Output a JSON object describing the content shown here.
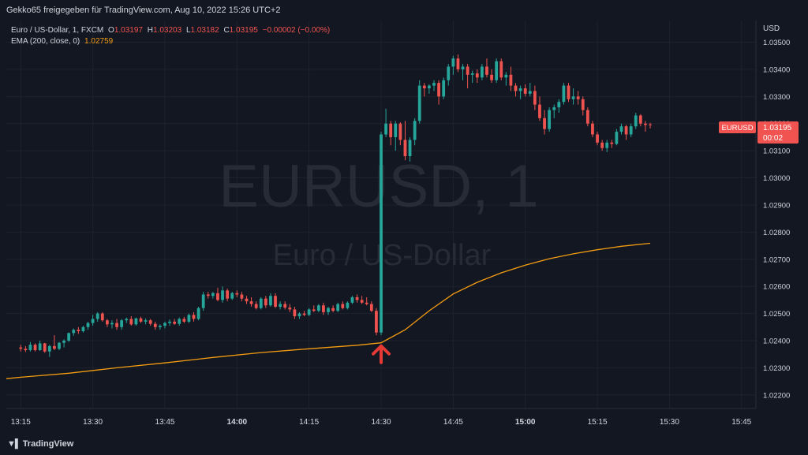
{
  "header": {
    "title": "Gekko65 freigegeben für TradingView.com, Aug 10, 2022 15:26 UTC+2"
  },
  "legend": {
    "symbol": "Euro / US-Dollar, 1, FXCM",
    "open_label": "O",
    "open": "1.03197",
    "high_label": "H",
    "high": "1.03203",
    "low_label": "L",
    "low": "1.03182",
    "close_label": "C",
    "close": "1.03195",
    "change": "−0.00002 (−0.00%)",
    "ema_label": "EMA (200, close, 0)",
    "ema_value": "1.02759"
  },
  "watermark": {
    "line1": "EURUSD, 1",
    "line2": "Euro / US-Dollar"
  },
  "price_tag": {
    "symbol": "EURUSD",
    "price": "1.03195",
    "countdown": "00:02"
  },
  "footer": {
    "logo": "TradingView"
  },
  "colors": {
    "up": "#26a69a",
    "down": "#ef5350",
    "ema": "#f39c12",
    "background": "#131722",
    "annotation": "#e53935"
  },
  "chart_data": {
    "type": "candlestick",
    "currency": "USD",
    "x_tick_labels": [
      "13:15",
      "13:30",
      "13:45",
      "14:00",
      "14:15",
      "14:30",
      "14:45",
      "15:00",
      "15:15",
      "15:30",
      "15:45"
    ],
    "bold_x_ticks": [
      "14:00",
      "15:00"
    ],
    "y_tick_labels": [
      "1.03500",
      "1.03400",
      "1.03300",
      "1.03200",
      "1.03100",
      "1.03000",
      "1.02900",
      "1.02800",
      "1.02700",
      "1.02600",
      "1.02500",
      "1.02400",
      "1.02300",
      "1.02200"
    ],
    "ylim": [
      1.0215,
      1.0358
    ],
    "xlim_minutes_from_13_15": [
      -3,
      153
    ],
    "grid": true,
    "annotation": {
      "type": "arrow-up",
      "minute": 75,
      "price": 1.02392
    },
    "candles": [
      {
        "m": 0,
        "o": 1.02375,
        "h": 1.02385,
        "l": 1.0236,
        "c": 1.0237
      },
      {
        "m": 1,
        "o": 1.0237,
        "h": 1.0238,
        "l": 1.02358,
        "c": 1.02365
      },
      {
        "m": 2,
        "o": 1.02365,
        "h": 1.02395,
        "l": 1.0236,
        "c": 1.02385
      },
      {
        "m": 3,
        "o": 1.02385,
        "h": 1.0239,
        "l": 1.0236,
        "c": 1.02365
      },
      {
        "m": 4,
        "o": 1.02365,
        "h": 1.024,
        "l": 1.02362,
        "c": 1.0239
      },
      {
        "m": 5,
        "o": 1.0239,
        "h": 1.02392,
        "l": 1.02355,
        "c": 1.0236
      },
      {
        "m": 6,
        "o": 1.0236,
        "h": 1.02385,
        "l": 1.0234,
        "c": 1.0238
      },
      {
        "m": 7,
        "o": 1.0238,
        "h": 1.0242,
        "l": 1.02365,
        "c": 1.0237
      },
      {
        "m": 8,
        "o": 1.0237,
        "h": 1.02395,
        "l": 1.02365,
        "c": 1.02392
      },
      {
        "m": 9,
        "o": 1.02392,
        "h": 1.02405,
        "l": 1.02375,
        "c": 1.024
      },
      {
        "m": 10,
        "o": 1.024,
        "h": 1.0243,
        "l": 1.02395,
        "c": 1.02428
      },
      {
        "m": 11,
        "o": 1.02428,
        "h": 1.02445,
        "l": 1.02418,
        "c": 1.0244
      },
      {
        "m": 12,
        "o": 1.0244,
        "h": 1.0245,
        "l": 1.02425,
        "c": 1.02435
      },
      {
        "m": 13,
        "o": 1.02435,
        "h": 1.02455,
        "l": 1.0243,
        "c": 1.0245
      },
      {
        "m": 14,
        "o": 1.0245,
        "h": 1.0247,
        "l": 1.0244,
        "c": 1.02465
      },
      {
        "m": 15,
        "o": 1.02465,
        "h": 1.02495,
        "l": 1.02455,
        "c": 1.0248
      },
      {
        "m": 16,
        "o": 1.0248,
        "h": 1.02505,
        "l": 1.0247,
        "c": 1.025
      },
      {
        "m": 17,
        "o": 1.025,
        "h": 1.02505,
        "l": 1.0247,
        "c": 1.02475
      },
      {
        "m": 18,
        "o": 1.02475,
        "h": 1.0248,
        "l": 1.0245,
        "c": 1.0246
      },
      {
        "m": 19,
        "o": 1.0246,
        "h": 1.02475,
        "l": 1.02445,
        "c": 1.02465
      },
      {
        "m": 20,
        "o": 1.02465,
        "h": 1.0248,
        "l": 1.0244,
        "c": 1.0245
      },
      {
        "m": 21,
        "o": 1.0245,
        "h": 1.0248,
        "l": 1.0244,
        "c": 1.02475
      },
      {
        "m": 22,
        "o": 1.02475,
        "h": 1.02485,
        "l": 1.02465,
        "c": 1.0248
      },
      {
        "m": 23,
        "o": 1.0248,
        "h": 1.0249,
        "l": 1.02455,
        "c": 1.0246
      },
      {
        "m": 24,
        "o": 1.0246,
        "h": 1.02485,
        "l": 1.02455,
        "c": 1.02482
      },
      {
        "m": 25,
        "o": 1.02482,
        "h": 1.02488,
        "l": 1.02465,
        "c": 1.0247
      },
      {
        "m": 26,
        "o": 1.0247,
        "h": 1.02482,
        "l": 1.0246,
        "c": 1.02475
      },
      {
        "m": 27,
        "o": 1.02475,
        "h": 1.0248,
        "l": 1.02455,
        "c": 1.02462
      },
      {
        "m": 28,
        "o": 1.02462,
        "h": 1.0247,
        "l": 1.0244,
        "c": 1.0245
      },
      {
        "m": 29,
        "o": 1.0245,
        "h": 1.0246,
        "l": 1.0244,
        "c": 1.02455
      },
      {
        "m": 30,
        "o": 1.02455,
        "h": 1.0247,
        "l": 1.02445,
        "c": 1.02465
      },
      {
        "m": 31,
        "o": 1.02465,
        "h": 1.02478,
        "l": 1.02455,
        "c": 1.0247
      },
      {
        "m": 32,
        "o": 1.0247,
        "h": 1.0248,
        "l": 1.02458,
        "c": 1.02462
      },
      {
        "m": 33,
        "o": 1.02462,
        "h": 1.02485,
        "l": 1.02455,
        "c": 1.0248
      },
      {
        "m": 34,
        "o": 1.0248,
        "h": 1.02488,
        "l": 1.02465,
        "c": 1.0247
      },
      {
        "m": 35,
        "o": 1.0247,
        "h": 1.025,
        "l": 1.02465,
        "c": 1.02495
      },
      {
        "m": 36,
        "o": 1.02495,
        "h": 1.02505,
        "l": 1.0247,
        "c": 1.0248
      },
      {
        "m": 37,
        "o": 1.0248,
        "h": 1.02525,
        "l": 1.02475,
        "c": 1.0252
      },
      {
        "m": 38,
        "o": 1.0252,
        "h": 1.0258,
        "l": 1.0251,
        "c": 1.0257
      },
      {
        "m": 39,
        "o": 1.0257,
        "h": 1.0258,
        "l": 1.02555,
        "c": 1.02565
      },
      {
        "m": 40,
        "o": 1.02565,
        "h": 1.0258,
        "l": 1.02555,
        "c": 1.02575
      },
      {
        "m": 41,
        "o": 1.02575,
        "h": 1.02595,
        "l": 1.02545,
        "c": 1.0255
      },
      {
        "m": 42,
        "o": 1.0255,
        "h": 1.026,
        "l": 1.0254,
        "c": 1.02585
      },
      {
        "m": 43,
        "o": 1.02585,
        "h": 1.02592,
        "l": 1.02545,
        "c": 1.02555
      },
      {
        "m": 44,
        "o": 1.02555,
        "h": 1.0258,
        "l": 1.0255,
        "c": 1.02575
      },
      {
        "m": 45,
        "o": 1.02575,
        "h": 1.02585,
        "l": 1.0256,
        "c": 1.0257
      },
      {
        "m": 46,
        "o": 1.0257,
        "h": 1.0258,
        "l": 1.02545,
        "c": 1.02555
      },
      {
        "m": 47,
        "o": 1.02555,
        "h": 1.02565,
        "l": 1.02535,
        "c": 1.02545
      },
      {
        "m": 48,
        "o": 1.02545,
        "h": 1.0256,
        "l": 1.02525,
        "c": 1.02535
      },
      {
        "m": 49,
        "o": 1.02535,
        "h": 1.02545,
        "l": 1.02515,
        "c": 1.0252
      },
      {
        "m": 50,
        "o": 1.0252,
        "h": 1.0256,
        "l": 1.02515,
        "c": 1.02555
      },
      {
        "m": 51,
        "o": 1.02555,
        "h": 1.02565,
        "l": 1.0252,
        "c": 1.0253
      },
      {
        "m": 52,
        "o": 1.0253,
        "h": 1.02575,
        "l": 1.02525,
        "c": 1.02565
      },
      {
        "m": 53,
        "o": 1.02565,
        "h": 1.02575,
        "l": 1.0252,
        "c": 1.02525
      },
      {
        "m": 54,
        "o": 1.02525,
        "h": 1.02545,
        "l": 1.02515,
        "c": 1.02535
      },
      {
        "m": 55,
        "o": 1.02535,
        "h": 1.02545,
        "l": 1.02515,
        "c": 1.02522
      },
      {
        "m": 56,
        "o": 1.02522,
        "h": 1.02535,
        "l": 1.02505,
        "c": 1.02515
      },
      {
        "m": 57,
        "o": 1.02515,
        "h": 1.02525,
        "l": 1.0248,
        "c": 1.0249
      },
      {
        "m": 58,
        "o": 1.0249,
        "h": 1.02505,
        "l": 1.0248,
        "c": 1.025
      },
      {
        "m": 59,
        "o": 1.025,
        "h": 1.0251,
        "l": 1.0249,
        "c": 1.02495
      },
      {
        "m": 60,
        "o": 1.02495,
        "h": 1.0252,
        "l": 1.0249,
        "c": 1.02515
      },
      {
        "m": 61,
        "o": 1.02515,
        "h": 1.0253,
        "l": 1.02505,
        "c": 1.0251
      },
      {
        "m": 62,
        "o": 1.0251,
        "h": 1.02535,
        "l": 1.02505,
        "c": 1.0253
      },
      {
        "m": 63,
        "o": 1.0253,
        "h": 1.0254,
        "l": 1.02495,
        "c": 1.02505
      },
      {
        "m": 64,
        "o": 1.02505,
        "h": 1.02525,
        "l": 1.02495,
        "c": 1.0252
      },
      {
        "m": 65,
        "o": 1.0252,
        "h": 1.0253,
        "l": 1.02505,
        "c": 1.0251
      },
      {
        "m": 66,
        "o": 1.0251,
        "h": 1.0254,
        "l": 1.02505,
        "c": 1.02535
      },
      {
        "m": 67,
        "o": 1.02535,
        "h": 1.02545,
        "l": 1.02515,
        "c": 1.0252
      },
      {
        "m": 68,
        "o": 1.0252,
        "h": 1.02545,
        "l": 1.02515,
        "c": 1.0254
      },
      {
        "m": 69,
        "o": 1.0254,
        "h": 1.02565,
        "l": 1.02535,
        "c": 1.0256
      },
      {
        "m": 70,
        "o": 1.0256,
        "h": 1.0257,
        "l": 1.0254,
        "c": 1.0255
      },
      {
        "m": 71,
        "o": 1.0255,
        "h": 1.02565,
        "l": 1.02535,
        "c": 1.0254
      },
      {
        "m": 72,
        "o": 1.0254,
        "h": 1.0256,
        "l": 1.0253,
        "c": 1.02535
      },
      {
        "m": 73,
        "o": 1.02535,
        "h": 1.02545,
        "l": 1.02505,
        "c": 1.0251
      },
      {
        "m": 74,
        "o": 1.0251,
        "h": 1.0252,
        "l": 1.0242,
        "c": 1.0243
      },
      {
        "m": 75,
        "o": 1.0243,
        "h": 1.0317,
        "l": 1.0242,
        "c": 1.0316
      },
      {
        "m": 76,
        "o": 1.0316,
        "h": 1.03255,
        "l": 1.0315,
        "c": 1.032
      },
      {
        "m": 77,
        "o": 1.032,
        "h": 1.0321,
        "l": 1.0312,
        "c": 1.0315
      },
      {
        "m": 78,
        "o": 1.0315,
        "h": 1.0321,
        "l": 1.031,
        "c": 1.032
      },
      {
        "m": 79,
        "o": 1.032,
        "h": 1.03205,
        "l": 1.0312,
        "c": 1.0314
      },
      {
        "m": 80,
        "o": 1.0314,
        "h": 1.0321,
        "l": 1.03065,
        "c": 1.0308
      },
      {
        "m": 81,
        "o": 1.0308,
        "h": 1.0315,
        "l": 1.0306,
        "c": 1.0314
      },
      {
        "m": 82,
        "o": 1.0314,
        "h": 1.0322,
        "l": 1.0312,
        "c": 1.0321
      },
      {
        "m": 83,
        "o": 1.0321,
        "h": 1.0336,
        "l": 1.032,
        "c": 1.0334
      },
      {
        "m": 84,
        "o": 1.0334,
        "h": 1.0335,
        "l": 1.033,
        "c": 1.0333
      },
      {
        "m": 85,
        "o": 1.0333,
        "h": 1.03345,
        "l": 1.0331,
        "c": 1.0334
      },
      {
        "m": 86,
        "o": 1.0334,
        "h": 1.0336,
        "l": 1.0332,
        "c": 1.0335
      },
      {
        "m": 87,
        "o": 1.0335,
        "h": 1.0336,
        "l": 1.0327,
        "c": 1.033
      },
      {
        "m": 88,
        "o": 1.033,
        "h": 1.0337,
        "l": 1.0329,
        "c": 1.0336
      },
      {
        "m": 89,
        "o": 1.0336,
        "h": 1.0342,
        "l": 1.0334,
        "c": 1.0341
      },
      {
        "m": 90,
        "o": 1.0341,
        "h": 1.0345,
        "l": 1.0338,
        "c": 1.0344
      },
      {
        "m": 91,
        "o": 1.0344,
        "h": 1.03455,
        "l": 1.0339,
        "c": 1.034
      },
      {
        "m": 92,
        "o": 1.034,
        "h": 1.0342,
        "l": 1.0336,
        "c": 1.0341
      },
      {
        "m": 93,
        "o": 1.0341,
        "h": 1.0342,
        "l": 1.0333,
        "c": 1.0338
      },
      {
        "m": 94,
        "o": 1.0338,
        "h": 1.03395,
        "l": 1.0335,
        "c": 1.03385
      },
      {
        "m": 95,
        "o": 1.03385,
        "h": 1.034,
        "l": 1.0335,
        "c": 1.0337
      },
      {
        "m": 96,
        "o": 1.0337,
        "h": 1.0342,
        "l": 1.0336,
        "c": 1.0341
      },
      {
        "m": 97,
        "o": 1.0341,
        "h": 1.0344,
        "l": 1.0337,
        "c": 1.0338
      },
      {
        "m": 98,
        "o": 1.0338,
        "h": 1.034,
        "l": 1.0335,
        "c": 1.0336
      },
      {
        "m": 99,
        "o": 1.0336,
        "h": 1.0344,
        "l": 1.0335,
        "c": 1.0343
      },
      {
        "m": 100,
        "o": 1.0343,
        "h": 1.0344,
        "l": 1.0336,
        "c": 1.0337
      },
      {
        "m": 101,
        "o": 1.0337,
        "h": 1.0339,
        "l": 1.0334,
        "c": 1.0338
      },
      {
        "m": 102,
        "o": 1.0338,
        "h": 1.0341,
        "l": 1.0332,
        "c": 1.0334
      },
      {
        "m": 103,
        "o": 1.0334,
        "h": 1.0335,
        "l": 1.033,
        "c": 1.0332
      },
      {
        "m": 104,
        "o": 1.0332,
        "h": 1.0334,
        "l": 1.0329,
        "c": 1.0333
      },
      {
        "m": 105,
        "o": 1.0333,
        "h": 1.03345,
        "l": 1.033,
        "c": 1.0331
      },
      {
        "m": 106,
        "o": 1.0331,
        "h": 1.0335,
        "l": 1.033,
        "c": 1.0332
      },
      {
        "m": 107,
        "o": 1.0332,
        "h": 1.0334,
        "l": 1.0325,
        "c": 1.0327
      },
      {
        "m": 108,
        "o": 1.0327,
        "h": 1.033,
        "l": 1.0321,
        "c": 1.0322
      },
      {
        "m": 109,
        "o": 1.0322,
        "h": 1.0325,
        "l": 1.0316,
        "c": 1.0318
      },
      {
        "m": 110,
        "o": 1.0318,
        "h": 1.0326,
        "l": 1.0317,
        "c": 1.0325
      },
      {
        "m": 111,
        "o": 1.0325,
        "h": 1.0327,
        "l": 1.0322,
        "c": 1.0326
      },
      {
        "m": 112,
        "o": 1.0326,
        "h": 1.0329,
        "l": 1.0324,
        "c": 1.0328
      },
      {
        "m": 113,
        "o": 1.0328,
        "h": 1.0335,
        "l": 1.0327,
        "c": 1.0334
      },
      {
        "m": 114,
        "o": 1.0334,
        "h": 1.0335,
        "l": 1.0328,
        "c": 1.0329
      },
      {
        "m": 115,
        "o": 1.0329,
        "h": 1.0333,
        "l": 1.0327,
        "c": 1.033
      },
      {
        "m": 116,
        "o": 1.033,
        "h": 1.0332,
        "l": 1.0327,
        "c": 1.0329
      },
      {
        "m": 117,
        "o": 1.0329,
        "h": 1.033,
        "l": 1.0323,
        "c": 1.0325
      },
      {
        "m": 118,
        "o": 1.0325,
        "h": 1.0326,
        "l": 1.0319,
        "c": 1.032
      },
      {
        "m": 119,
        "o": 1.032,
        "h": 1.0321,
        "l": 1.0315,
        "c": 1.0316
      },
      {
        "m": 120,
        "o": 1.0316,
        "h": 1.0317,
        "l": 1.0312,
        "c": 1.0313
      },
      {
        "m": 121,
        "o": 1.0313,
        "h": 1.0314,
        "l": 1.031,
        "c": 1.0311
      },
      {
        "m": 122,
        "o": 1.0311,
        "h": 1.0314,
        "l": 1.03095,
        "c": 1.0313
      },
      {
        "m": 123,
        "o": 1.0313,
        "h": 1.0314,
        "l": 1.0311,
        "c": 1.03125
      },
      {
        "m": 124,
        "o": 1.03125,
        "h": 1.0318,
        "l": 1.0312,
        "c": 1.0317
      },
      {
        "m": 125,
        "o": 1.0317,
        "h": 1.032,
        "l": 1.0316,
        "c": 1.0319
      },
      {
        "m": 126,
        "o": 1.0319,
        "h": 1.03195,
        "l": 1.0314,
        "c": 1.0316
      },
      {
        "m": 127,
        "o": 1.0316,
        "h": 1.032,
        "l": 1.0315,
        "c": 1.0319
      },
      {
        "m": 128,
        "o": 1.0319,
        "h": 1.0324,
        "l": 1.0318,
        "c": 1.0323
      },
      {
        "m": 129,
        "o": 1.0323,
        "h": 1.03235,
        "l": 1.0319,
        "c": 1.032
      },
      {
        "m": 130,
        "o": 1.032,
        "h": 1.0321,
        "l": 1.0317,
        "c": 1.03195
      },
      {
        "m": 131,
        "o": 1.03197,
        "h": 1.03203,
        "l": 1.03182,
        "c": 1.03195
      }
    ],
    "ema": [
      {
        "m": -3,
        "v": 1.0226
      },
      {
        "m": 0,
        "v": 1.02265
      },
      {
        "m": 10,
        "v": 1.0228
      },
      {
        "m": 20,
        "v": 1.023
      },
      {
        "m": 30,
        "v": 1.02318
      },
      {
        "m": 40,
        "v": 1.02338
      },
      {
        "m": 50,
        "v": 1.02356
      },
      {
        "m": 60,
        "v": 1.0237
      },
      {
        "m": 70,
        "v": 1.02383
      },
      {
        "m": 75,
        "v": 1.02392
      },
      {
        "m": 80,
        "v": 1.0244
      },
      {
        "m": 85,
        "v": 1.0251
      },
      {
        "m": 90,
        "v": 1.02572
      },
      {
        "m": 95,
        "v": 1.02615
      },
      {
        "m": 100,
        "v": 1.0265
      },
      {
        "m": 105,
        "v": 1.02678
      },
      {
        "m": 110,
        "v": 1.02702
      },
      {
        "m": 115,
        "v": 1.0272
      },
      {
        "m": 120,
        "v": 1.02735
      },
      {
        "m": 125,
        "v": 1.02748
      },
      {
        "m": 131,
        "v": 1.02759
      }
    ]
  }
}
